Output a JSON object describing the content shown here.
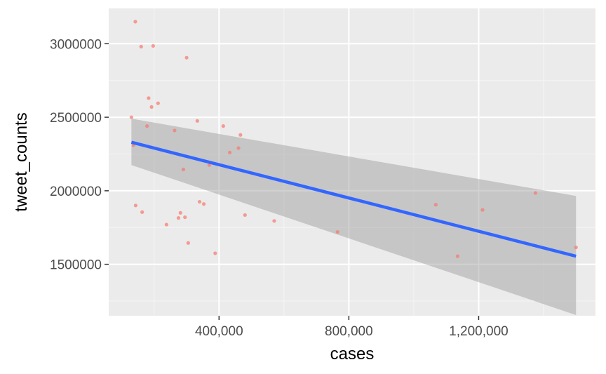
{
  "chart_data": {
    "type": "scatter",
    "xlabel": "cases",
    "ylabel": "tweet_counts",
    "xlim": [
      60000,
      1560000
    ],
    "ylim": [
      1150000,
      3240000
    ],
    "x_ticks": [
      400000,
      800000,
      1200000
    ],
    "x_tick_labels": [
      "400,000",
      "800,000",
      "1,200,000"
    ],
    "y_ticks": [
      1500000,
      2000000,
      2500000,
      3000000
    ],
    "y_tick_labels": [
      "1500000",
      "2000000",
      "2500000",
      "3000000"
    ],
    "grid": true,
    "points": [
      {
        "x": 130000,
        "y": 2500000
      },
      {
        "x": 136000,
        "y": 2310000
      },
      {
        "x": 142000,
        "y": 3150000
      },
      {
        "x": 143000,
        "y": 1900000
      },
      {
        "x": 160000,
        "y": 2980000
      },
      {
        "x": 163000,
        "y": 1855000
      },
      {
        "x": 178000,
        "y": 2440000
      },
      {
        "x": 183000,
        "y": 2630000
      },
      {
        "x": 192000,
        "y": 2570000
      },
      {
        "x": 197000,
        "y": 2985000
      },
      {
        "x": 212000,
        "y": 2595000
      },
      {
        "x": 238000,
        "y": 1770000
      },
      {
        "x": 263000,
        "y": 2410000
      },
      {
        "x": 275000,
        "y": 1815000
      },
      {
        "x": 281000,
        "y": 1850000
      },
      {
        "x": 290000,
        "y": 2145000
      },
      {
        "x": 295000,
        "y": 1820000
      },
      {
        "x": 300000,
        "y": 2905000
      },
      {
        "x": 305000,
        "y": 1645000
      },
      {
        "x": 333000,
        "y": 2475000
      },
      {
        "x": 340000,
        "y": 1925000
      },
      {
        "x": 353000,
        "y": 1910000
      },
      {
        "x": 370000,
        "y": 2175000
      },
      {
        "x": 388000,
        "y": 1575000
      },
      {
        "x": 413000,
        "y": 2440000
      },
      {
        "x": 433000,
        "y": 2260000
      },
      {
        "x": 460000,
        "y": 2290000
      },
      {
        "x": 466000,
        "y": 2380000
      },
      {
        "x": 480000,
        "y": 1835000
      },
      {
        "x": 570000,
        "y": 1795000
      },
      {
        "x": 765000,
        "y": 1720000
      },
      {
        "x": 1068000,
        "y": 1905000
      },
      {
        "x": 1135000,
        "y": 1555000
      },
      {
        "x": 1212000,
        "y": 1870000
      },
      {
        "x": 1375000,
        "y": 1985000
      },
      {
        "x": 1500000,
        "y": 1615000
      }
    ],
    "trend_line": {
      "x": [
        130000,
        1500000
      ],
      "y": [
        2330000,
        1555000
      ]
    },
    "confidence_band": {
      "x": [
        130000,
        1500000
      ],
      "upper": [
        2490000,
        1965000
      ],
      "lower": [
        2175000,
        1155000
      ]
    },
    "colors": {
      "point": "#F8766D",
      "trend": "#3366FF",
      "band": "#999999",
      "panel": "#EBEBEB",
      "grid_major": "#FFFFFF"
    }
  }
}
